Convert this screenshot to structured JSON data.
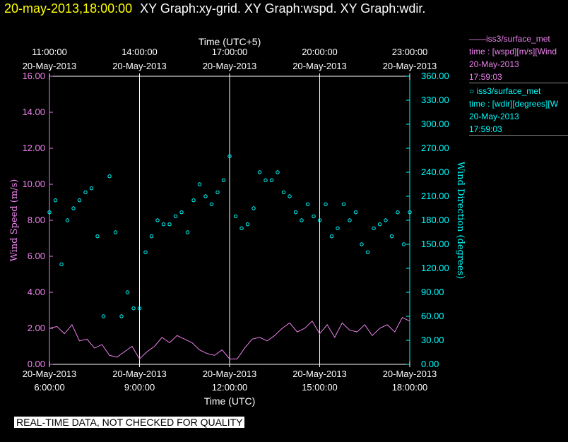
{
  "header": {
    "timestamp": "20-may-2013,18:00:00",
    "graphs": "XY Graph:xy-grid.  XY Graph:wspd.  XY Graph:wdir."
  },
  "legend": {
    "wspd": {
      "line1": "——iss3/surface_met",
      "line2": "time : [wspd][m/s][Wind",
      "line3": "20-May-2013",
      "line4": "17:59:03"
    },
    "wdir": {
      "line1": "○ iss3/surface_met",
      "line2": "time : [wdir][degrees][W",
      "line3": "20-May-2013",
      "line4": "17:59:03"
    }
  },
  "notice": "REAL-TIME DATA, NOT CHECKED FOR QUALITY",
  "colors": {
    "wspd": "#ee82ee",
    "wdir": "#00ffff",
    "grid": "#ffffff"
  },
  "chart_data": {
    "type": "line",
    "xlabel_bottom": "Time (UTC)",
    "xlabel_top": "Time (UTC+5)",
    "ylabel_left": "Wind Speed (m/s)",
    "ylabel_right": "Wind Direction (degrees)",
    "xlim": [
      6,
      18
    ],
    "ylim_left": [
      0,
      16
    ],
    "ylim_right": [
      0,
      360
    ],
    "grid_x": [
      9,
      12,
      15
    ],
    "yticks_left": [
      "0.00",
      "2.00",
      "4.00",
      "6.00",
      "8.00",
      "10.00",
      "12.00",
      "14.00",
      "16.00"
    ],
    "yticks_right": [
      "0.00",
      "30.00",
      "60.00",
      "90.00",
      "120.00",
      "150.00",
      "180.00",
      "210.00",
      "240.00",
      "270.00",
      "300.00",
      "330.00",
      "360.00"
    ],
    "xticks_bottom": [
      {
        "x": 6,
        "date": "20-May-2013",
        "time": "6:00:00"
      },
      {
        "x": 9,
        "date": "20-May-2013",
        "time": "9:00:00"
      },
      {
        "x": 12,
        "date": "20-May-2013",
        "time": "12:00:00"
      },
      {
        "x": 15,
        "date": "20-May-2013",
        "time": "15:00:00"
      },
      {
        "x": 18,
        "date": "20-May-2013",
        "time": "18:00:00"
      }
    ],
    "xticks_top": [
      {
        "x": 6,
        "date": "20-May-2013",
        "time": "11:00:00"
      },
      {
        "x": 9,
        "date": "20-May-2013",
        "time": "14:00:00"
      },
      {
        "x": 12,
        "date": "20-May-2013",
        "time": "17:00:00"
      },
      {
        "x": 15,
        "date": "20-May-2013",
        "time": "20:00:00"
      },
      {
        "x": 18,
        "date": "20-May-2013",
        "time": "23:00:00"
      }
    ],
    "series": [
      {
        "name": "iss3/surface_met wspd",
        "axis": "left",
        "style": "line",
        "x": [
          6,
          6.25,
          6.5,
          6.75,
          7,
          7.25,
          7.5,
          7.75,
          8,
          8.25,
          8.5,
          8.75,
          9,
          9.25,
          9.5,
          9.75,
          10,
          10.25,
          10.5,
          10.75,
          11,
          11.25,
          11.5,
          11.75,
          12,
          12.25,
          12.5,
          12.75,
          13,
          13.25,
          13.5,
          13.75,
          14,
          14.25,
          14.5,
          14.75,
          15,
          15.25,
          15.5,
          15.75,
          16,
          16.25,
          16.5,
          16.75,
          17,
          17.25,
          17.5,
          17.75,
          18
        ],
        "y": [
          2.0,
          2.1,
          1.7,
          2.2,
          1.3,
          1.4,
          0.9,
          1.1,
          0.5,
          0.4,
          0.7,
          1.0,
          0.3,
          0.7,
          1.0,
          1.5,
          1.2,
          1.6,
          1.4,
          1.2,
          0.8,
          0.6,
          0.5,
          0.8,
          0.3,
          0.3,
          0.9,
          1.4,
          1.5,
          1.3,
          1.6,
          2.0,
          2.3,
          1.8,
          2.0,
          2.4,
          1.7,
          2.2,
          1.5,
          2.3,
          1.9,
          1.8,
          2.2,
          1.6,
          2.0,
          2.2,
          1.8,
          2.6,
          2.4
        ]
      },
      {
        "name": "iss3/surface_met wdir",
        "axis": "right",
        "style": "markers",
        "x": [
          6,
          6.2,
          6.4,
          6.6,
          6.8,
          7,
          7.2,
          7.4,
          7.6,
          7.8,
          8,
          8.2,
          8.4,
          8.6,
          8.8,
          9,
          9.2,
          9.4,
          9.6,
          9.8,
          10,
          10.2,
          10.4,
          10.6,
          10.8,
          11,
          11.2,
          11.4,
          11.6,
          11.8,
          12,
          12.2,
          12.4,
          12.6,
          12.8,
          13,
          13.2,
          13.4,
          13.6,
          13.8,
          14,
          14.2,
          14.4,
          14.6,
          14.8,
          15,
          15.2,
          15.4,
          15.6,
          15.8,
          16,
          16.2,
          16.4,
          16.6,
          16.8,
          17,
          17.2,
          17.4,
          17.6,
          17.8,
          18
        ],
        "y": [
          190,
          205,
          125,
          180,
          195,
          205,
          215,
          220,
          160,
          60,
          235,
          165,
          60,
          90,
          70,
          70,
          140,
          160,
          180,
          175,
          175,
          185,
          190,
          165,
          205,
          225,
          210,
          200,
          215,
          230,
          260,
          185,
          170,
          175,
          195,
          240,
          230,
          230,
          240,
          215,
          210,
          190,
          180,
          200,
          185,
          180,
          200,
          160,
          170,
          200,
          180,
          190,
          150,
          140,
          170,
          175,
          180,
          160,
          190,
          150,
          190
        ]
      }
    ]
  }
}
